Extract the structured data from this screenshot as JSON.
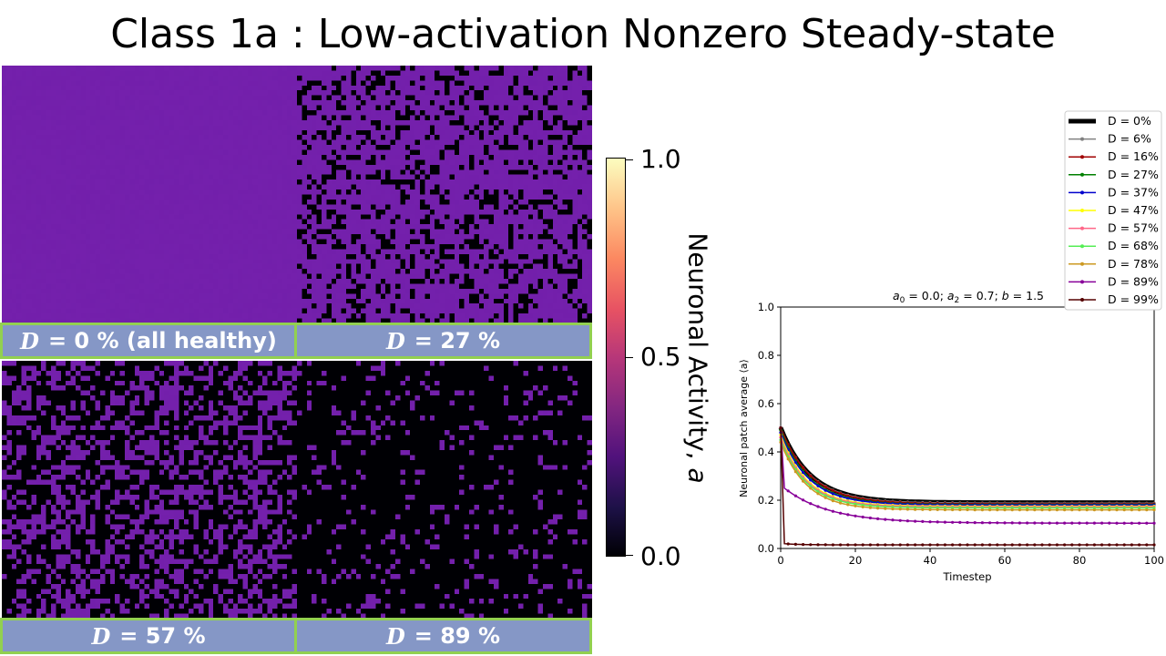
{
  "slide": {
    "title": "Class 1a : Low-activation Nonzero Steady-state",
    "colors": {
      "label_fill": "#8597c6",
      "label_border": "#92d050"
    }
  },
  "panels": [
    {
      "id": "p0",
      "d_symbol": "D",
      "label": "=  0 % (all healthy)",
      "fraction_diseased": 0.0
    },
    {
      "id": "p27",
      "d_symbol": "D",
      "label": "= 27 %",
      "fraction_diseased": 0.27
    },
    {
      "id": "p57",
      "d_symbol": "D",
      "label": "= 57 %",
      "fraction_diseased": 0.57
    },
    {
      "id": "p89",
      "d_symbol": "D",
      "label": "= 89 %",
      "fraction_diseased": 0.89
    }
  ],
  "colorbar": {
    "label_text": "Neuronal Activity, ",
    "label_var": "a",
    "colormap": "magma",
    "ticks": [
      "1.0",
      "0.5",
      "0.0"
    ]
  },
  "chart_data": {
    "type": "line",
    "title": "a₀ = 0.0; a₂ = 0.7; b = 1.5",
    "xlabel": "Timestep",
    "ylabel": "Neuronal patch average ⟨a⟩",
    "xlim": [
      0,
      100
    ],
    "ylim": [
      0,
      1.0
    ],
    "xticks": [
      0,
      20,
      40,
      60,
      80,
      100
    ],
    "yticks": [
      0.0,
      0.2,
      0.4,
      0.6,
      0.8,
      1.0
    ],
    "legend_position": "upper-right-outside",
    "series": [
      {
        "name": "D = 0%",
        "color": "#000000",
        "width": 5,
        "start": 0.5,
        "steady": 0.19,
        "tau": 8
      },
      {
        "name": "D = 6%",
        "color": "#808080",
        "width": 1.5,
        "start": 0.5,
        "steady": 0.188,
        "tau": 8
      },
      {
        "name": "D = 16%",
        "color": "#a00000",
        "width": 1.5,
        "start": 0.5,
        "steady": 0.185,
        "tau": 8
      },
      {
        "name": "D = 27%",
        "color": "#008000",
        "width": 1.5,
        "start": 0.49,
        "steady": 0.182,
        "tau": 7.5
      },
      {
        "name": "D = 37%",
        "color": "#0000cc",
        "width": 1.5,
        "start": 0.48,
        "steady": 0.18,
        "tau": 7.5
      },
      {
        "name": "D = 47%",
        "color": "#ffff00",
        "width": 1.5,
        "start": 0.47,
        "steady": 0.175,
        "tau": 7
      },
      {
        "name": "D = 57%",
        "color": "#ff6688",
        "width": 1.5,
        "start": 0.46,
        "steady": 0.172,
        "tau": 7
      },
      {
        "name": "D = 68%",
        "color": "#55ee55",
        "width": 1.5,
        "start": 0.45,
        "steady": 0.168,
        "tau": 7
      },
      {
        "name": "D = 78%",
        "color": "#cc9922",
        "width": 1.5,
        "start": 0.44,
        "steady": 0.16,
        "tau": 7
      },
      {
        "name": "D = 89%",
        "color": "#880099",
        "width": 1.5,
        "start": 0.5,
        "steady": 0.105,
        "tau": 6,
        "step": true,
        "after_step": 0.25
      },
      {
        "name": "D = 99%",
        "color": "#550000",
        "width": 1.5,
        "start": 0.5,
        "steady": 0.015,
        "tau": 2,
        "step": true,
        "after_step": 0.02
      }
    ]
  }
}
